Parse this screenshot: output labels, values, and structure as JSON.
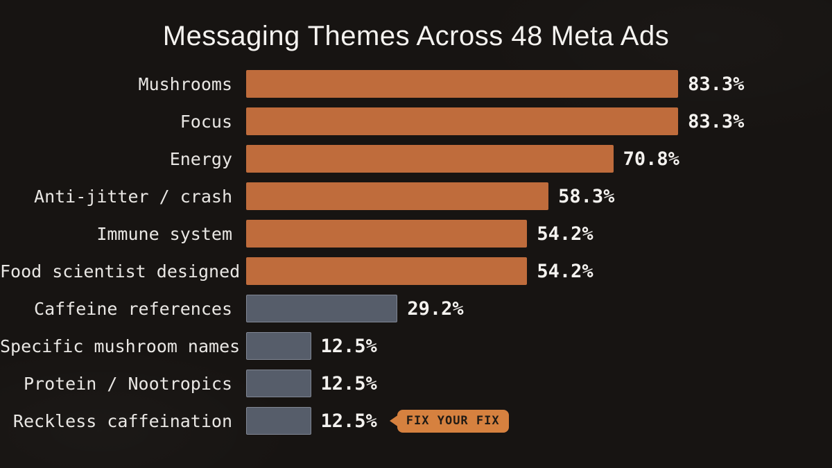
{
  "title": "Messaging Themes Across 48 Meta Ads",
  "colors": {
    "background": "#171412",
    "title_text": "#f5f3f0",
    "label_text": "#e9e7e4",
    "value_text": "#f4f2ef",
    "highlight_bar": "#bf6c3c",
    "muted_bar": "#565d6a",
    "badge_fill": "#d6813f",
    "badge_text": "#211b15"
  },
  "chart_data": {
    "type": "bar",
    "orientation": "horizontal",
    "title": "Messaging Themes Across 48 Meta Ads",
    "xlabel": "",
    "ylabel": "",
    "xlim": [
      0,
      100
    ],
    "grid": false,
    "legend": false,
    "categories": [
      "Mushrooms",
      "Focus",
      "Energy",
      "Anti-jitter / crash",
      "Immune system",
      "Food scientist designed",
      "Caffeine references",
      "Specific mushroom names",
      "Protein / Nootropics",
      "Reckless caffeination"
    ],
    "values": [
      83.3,
      83.3,
      70.8,
      58.3,
      54.2,
      54.2,
      29.2,
      12.5,
      12.5,
      12.5
    ],
    "value_labels": [
      "83.3%",
      "83.3%",
      "70.8%",
      "58.3%",
      "54.2%",
      "54.2%",
      "29.2%",
      "12.5%",
      "12.5%",
      "12.5%"
    ],
    "bar_colors": [
      "#bf6c3c",
      "#bf6c3c",
      "#bf6c3c",
      "#bf6c3c",
      "#bf6c3c",
      "#bf6c3c",
      "#565d6a",
      "#565d6a",
      "#565d6a",
      "#565d6a"
    ],
    "annotation": {
      "label": "FIX YOUR FIX",
      "attached_to": "Reckless caffeination",
      "fill": "#d6813f",
      "text_color": "#211b15"
    }
  }
}
